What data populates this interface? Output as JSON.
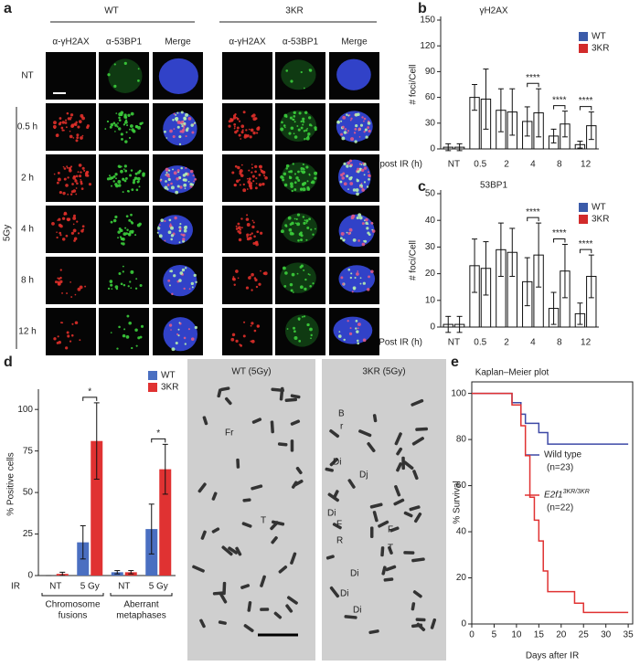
{
  "panel_labels": [
    "a",
    "b",
    "c",
    "d",
    "e"
  ],
  "panel_a": {
    "groups": [
      "WT",
      "3KR"
    ],
    "columns": [
      "α-γH2AX",
      "α-53BP1",
      "Merge"
    ],
    "rows": [
      "NT",
      "0.5 h",
      "2 h",
      "4 h",
      "8 h",
      "12 h"
    ],
    "treatment": "5Gy"
  },
  "chart_data": [
    {
      "type": "bar",
      "title": "γH2AX",
      "ylabel": "# foci/Cell",
      "xlabel": "post IR (h)",
      "filled": false,
      "categories": [
        "NT",
        "0.5",
        "2",
        "4",
        "8",
        "12"
      ],
      "series": [
        {
          "name": "WT",
          "color": "#3b5ba9",
          "values": [
            2,
            60,
            45,
            32,
            15,
            5
          ],
          "errors": [
            4,
            15,
            25,
            17,
            8,
            4
          ]
        },
        {
          "name": "3KR",
          "color": "#d22b2b",
          "values": [
            2,
            58,
            43,
            42,
            29,
            27
          ],
          "errors": [
            4,
            35,
            27,
            28,
            15,
            16
          ]
        }
      ],
      "ylim": [
        0,
        150
      ],
      "yticks": [
        0,
        30,
        60,
        90,
        120,
        150
      ],
      "significance": [
        null,
        null,
        null,
        "****",
        "****",
        "****"
      ]
    },
    {
      "type": "bar",
      "title": "53BP1",
      "ylabel": "# foci/Cell",
      "xlabel": "Post IR (h)",
      "filled": false,
      "categories": [
        "NT",
        "0.5",
        "2",
        "4",
        "8",
        "12"
      ],
      "series": [
        {
          "name": "WT",
          "color": "#3b5ba9",
          "values": [
            1,
            23,
            29,
            17,
            7,
            5
          ],
          "errors": [
            3,
            10,
            10,
            9,
            6,
            4
          ]
        },
        {
          "name": "3KR",
          "color": "#d22b2b",
          "values": [
            1,
            22,
            28,
            27,
            21,
            19
          ],
          "errors": [
            3,
            10,
            9,
            12,
            10,
            8
          ]
        }
      ],
      "ylim": [
        0,
        50
      ],
      "yticks": [
        0,
        10,
        20,
        30,
        40,
        50
      ],
      "significance": [
        null,
        null,
        null,
        "****",
        "****",
        "****"
      ]
    },
    {
      "type": "bar",
      "ylabel": "% Positive cells",
      "xlabel": "IR",
      "filled": true,
      "categories": [
        "NT",
        "5 Gy",
        "NT",
        "5 Gy"
      ],
      "groups": [
        [
          "Chromosome",
          "fusions"
        ],
        [
          "Aberrant",
          "metaphases"
        ]
      ],
      "series": [
        {
          "name": "WT",
          "color": "#4a6fc1",
          "values": [
            0,
            20,
            2,
            28
          ],
          "errors": [
            0,
            10,
            1,
            15
          ]
        },
        {
          "name": "3KR",
          "color": "#e03232",
          "values": [
            1,
            81,
            2,
            64
          ],
          "errors": [
            1,
            23,
            1,
            15
          ]
        }
      ],
      "ylim": [
        0,
        110
      ],
      "yticks": [
        0,
        25,
        50,
        75,
        100
      ],
      "significance": [
        null,
        "*",
        null,
        "*"
      ]
    },
    {
      "type": "line",
      "step": true,
      "title": "Kaplan–Meier plot",
      "xlabel": "Days after IR",
      "ylabel": "% Survival",
      "xlim": [
        0,
        36
      ],
      "xticks": [
        0,
        5,
        10,
        15,
        20,
        25,
        30,
        35
      ],
      "ylim": [
        0,
        105
      ],
      "yticks": [
        0,
        20,
        40,
        60,
        80,
        100
      ],
      "series": [
        {
          "name": "Wild type",
          "n_label": "(n=23)",
          "color": "#3d49a6",
          "x": [
            0,
            9,
            11,
            12,
            15,
            17,
            35
          ],
          "values": [
            100,
            96,
            91,
            87,
            83,
            78,
            78
          ]
        },
        {
          "name": "E2f1",
          "name_superscript": "3KR/3KR",
          "n_label": "(n=22)",
          "color": "#e03232",
          "x": [
            0,
            9,
            11,
            12,
            13,
            14,
            15,
            16,
            17,
            23,
            25,
            35
          ],
          "values": [
            100,
            95,
            86,
            73,
            55,
            45,
            36,
            23,
            14,
            9,
            5,
            5
          ]
        }
      ]
    }
  ],
  "panel_d_images": {
    "titles": [
      "WT (5Gy)",
      "3KR (5Gy)"
    ],
    "wt_annotations": [
      "Fr",
      "T"
    ],
    "kr_annotations": [
      "B",
      "r",
      "Di",
      "Dj",
      "Di",
      "F",
      "R",
      "F",
      "T",
      "Di",
      "Di",
      "Di"
    ]
  }
}
